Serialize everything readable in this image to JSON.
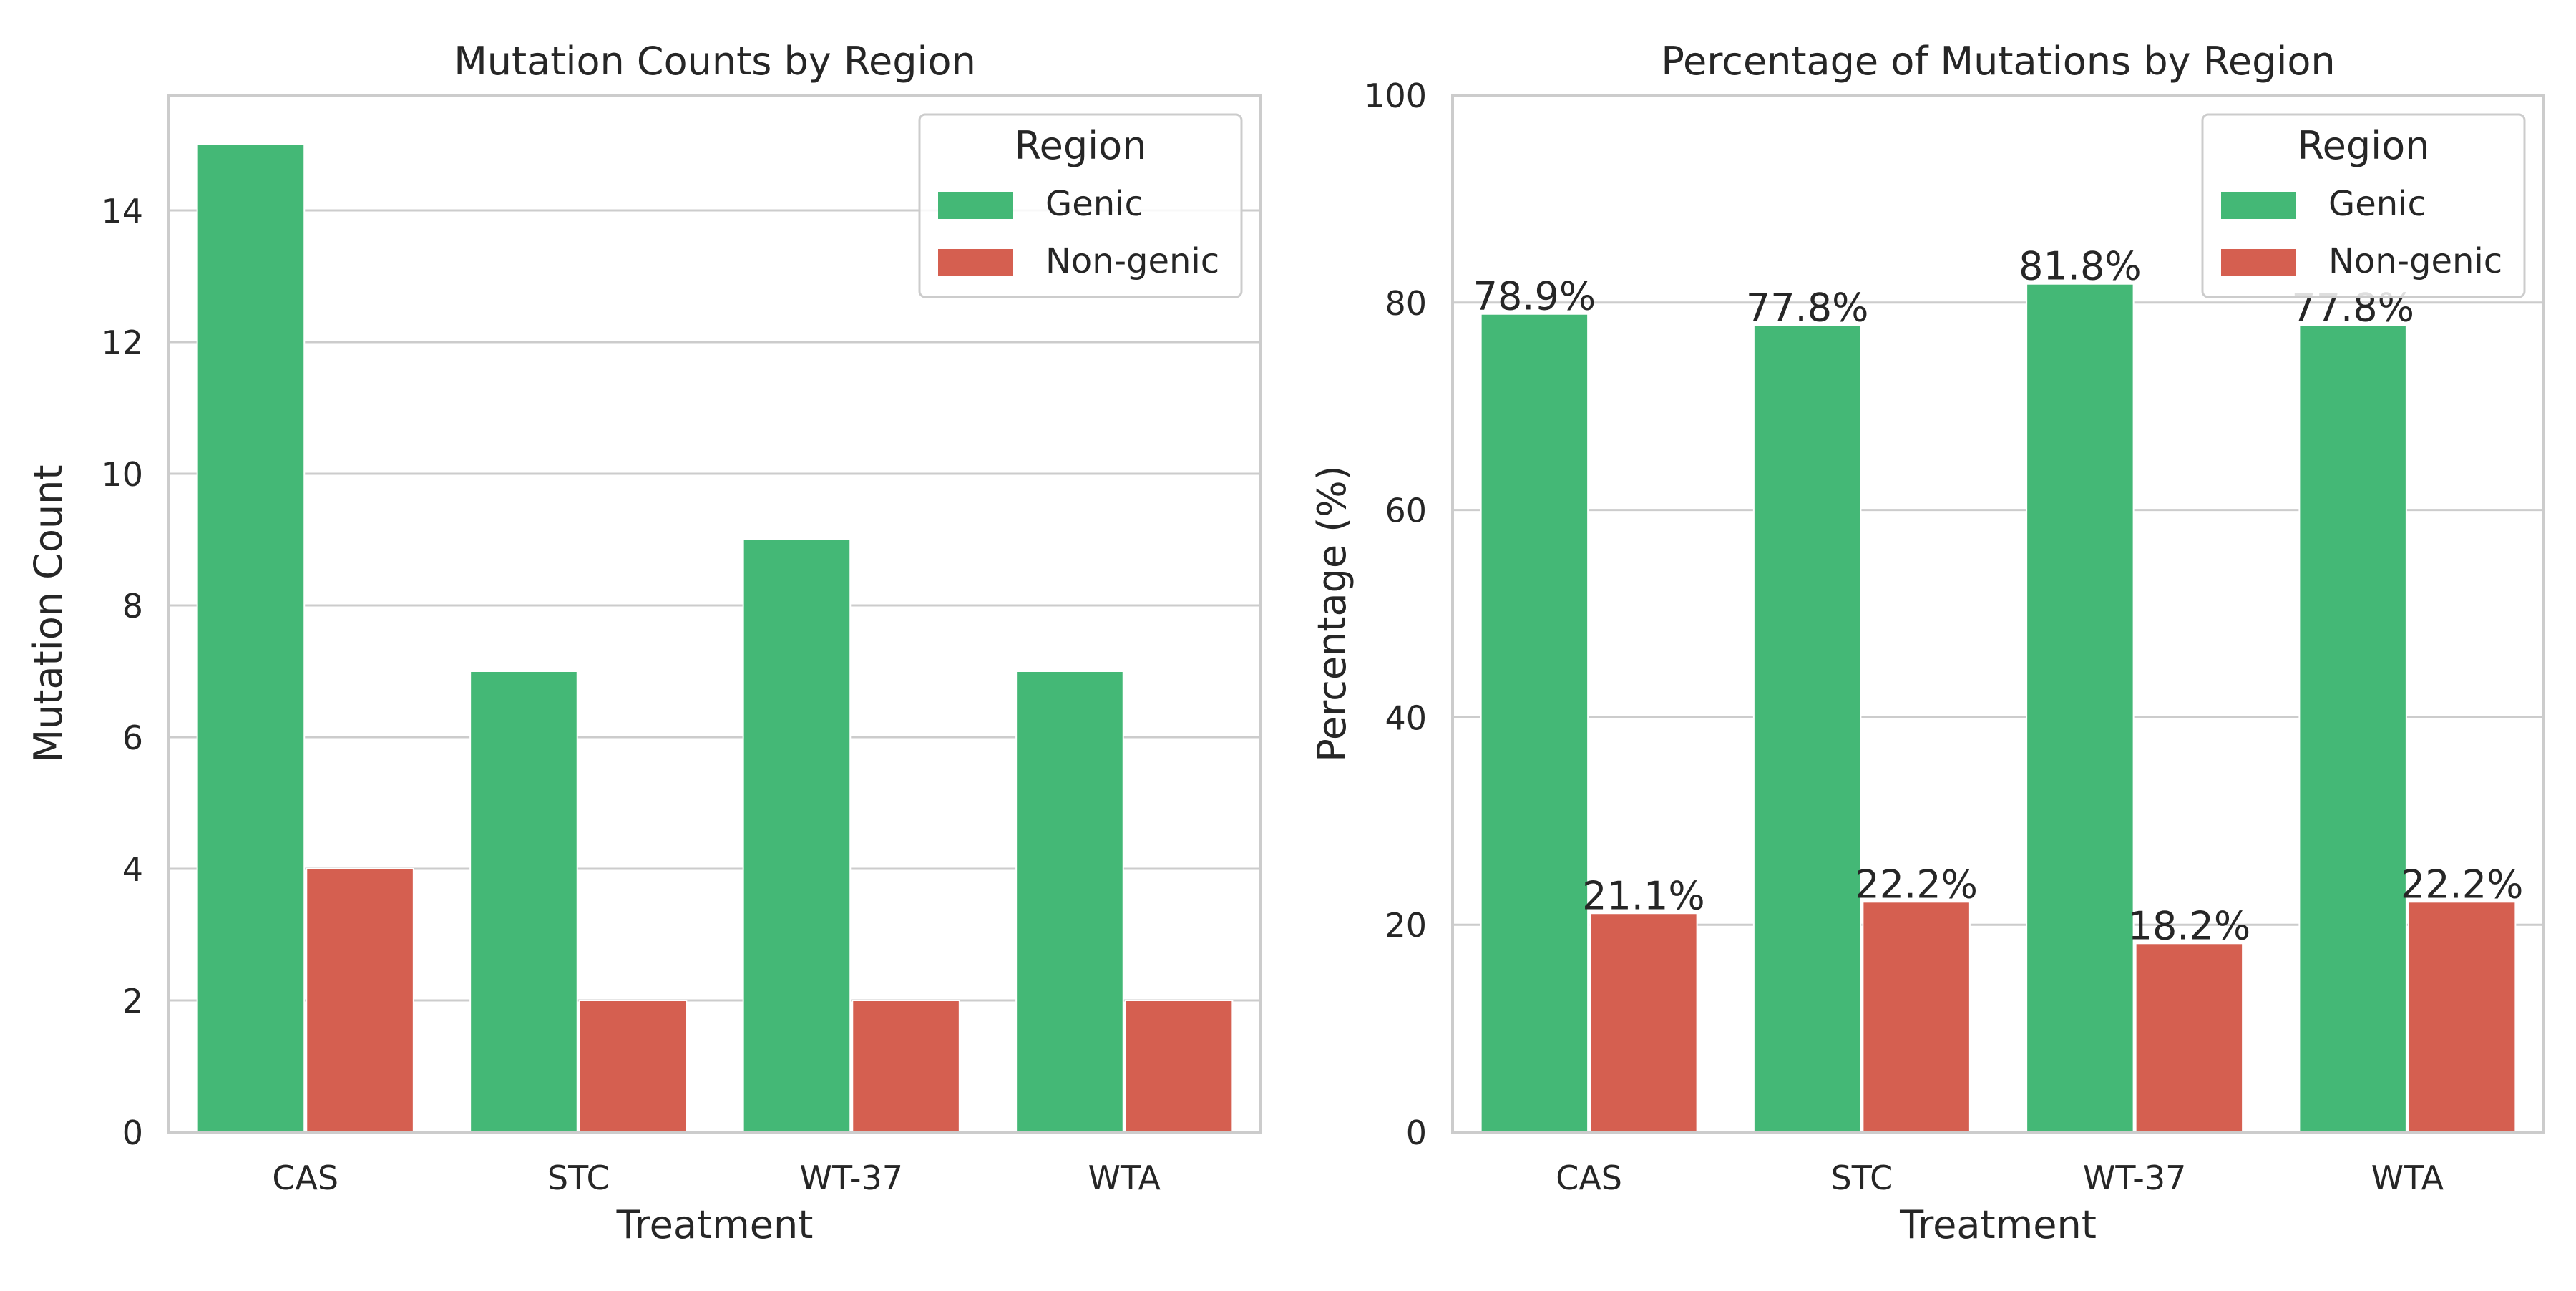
{
  "colors": {
    "Genic": "#44b876",
    "Non-genic": "#d55f50",
    "grid": "#cccccc",
    "frame": "#cccccc",
    "background": "#ffffff"
  },
  "chart_data": [
    {
      "type": "bar",
      "title": "Mutation Counts by Region",
      "xlabel": "Treatment",
      "ylabel": "Mutation Count",
      "categories": [
        "CAS",
        "STC",
        "WT-37",
        "WTA"
      ],
      "series": [
        {
          "name": "Genic",
          "values": [
            15,
            7,
            9,
            7
          ]
        },
        {
          "name": "Non-genic",
          "values": [
            4,
            2,
            2,
            2
          ]
        }
      ],
      "ylim": [
        0,
        15.75
      ],
      "yticks": [
        0,
        2,
        4,
        6,
        8,
        10,
        12,
        14
      ],
      "grid": true,
      "legend": {
        "title": "Region",
        "placement": "top-right"
      }
    },
    {
      "type": "bar",
      "title": "Percentage of Mutations by Region",
      "xlabel": "Treatment",
      "ylabel": "Percentage (%)",
      "categories": [
        "CAS",
        "STC",
        "WT-37",
        "WTA"
      ],
      "series": [
        {
          "name": "Genic",
          "values": [
            78.9,
            77.8,
            81.8,
            77.8
          ],
          "labels": [
            "78.9%",
            "77.8%",
            "81.8%",
            "77.8%"
          ]
        },
        {
          "name": "Non-genic",
          "values": [
            21.1,
            22.2,
            18.2,
            22.2
          ],
          "labels": [
            "21.1%",
            "22.2%",
            "18.2%",
            "22.2%"
          ]
        }
      ],
      "ylim": [
        0,
        100
      ],
      "yticks": [
        0,
        20,
        40,
        60,
        80,
        100
      ],
      "grid": true,
      "legend": {
        "title": "Region",
        "placement": "top-right"
      }
    }
  ]
}
